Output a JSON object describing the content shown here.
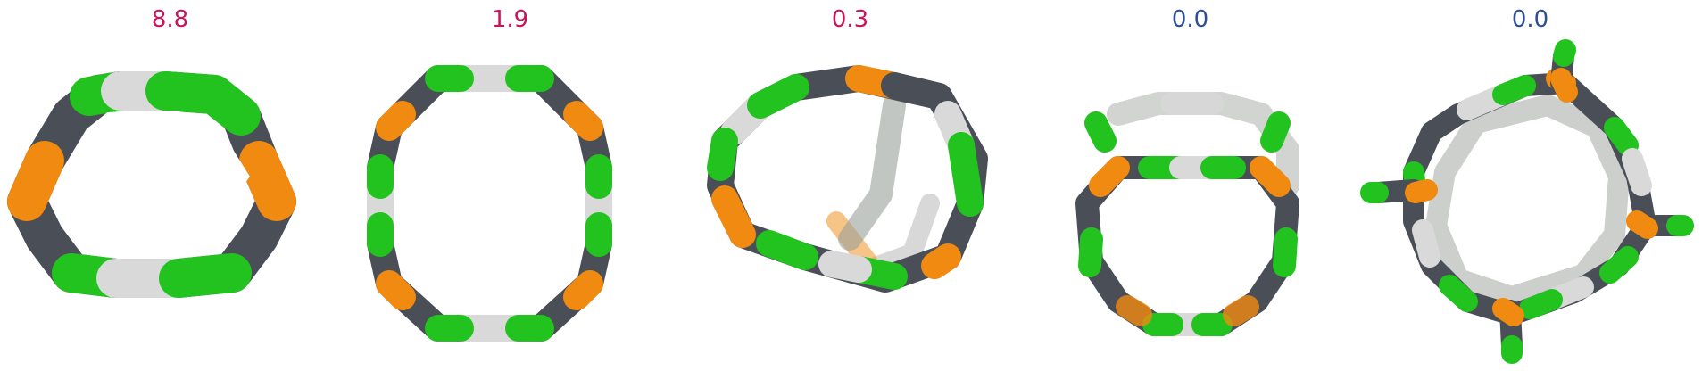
{
  "colors": {
    "green": "#22c31f",
    "dark": "#4a4e57",
    "white": "#d9d9d9",
    "orange": "#f08a10",
    "value_high": "#c8145a",
    "value_low": "#2d4f96"
  },
  "panels": [
    {
      "value": "8.8",
      "value_color": "#c8145a"
    },
    {
      "value": "1.9",
      "value_color": "#c8145a"
    },
    {
      "value": "0.3",
      "value_color": "#c8145a"
    },
    {
      "value": "0.0",
      "value_color": "#2d4f96"
    },
    {
      "value": "0.0",
      "value_color": "#2d4f96"
    }
  ]
}
